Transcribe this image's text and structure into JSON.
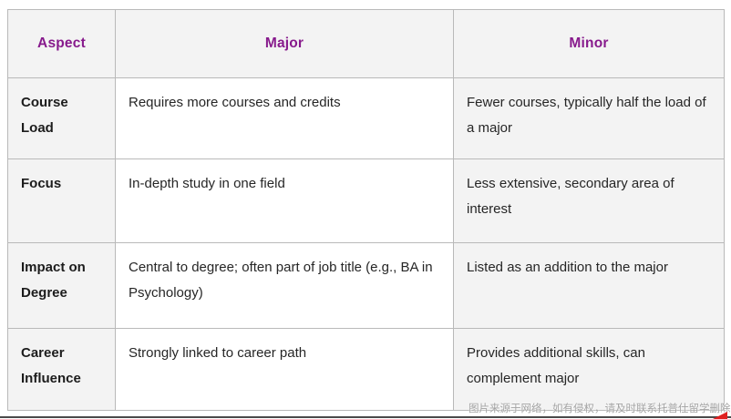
{
  "colors": {
    "header_text": "#871a8c",
    "cell_shade": "#f3f3f3",
    "border": "#b9b9b9",
    "body_text": "#262626",
    "label_text": "#1c1c1c",
    "watermark_text": "#a3a3a3",
    "bottom_line": "#4a4a4a",
    "corner_mark": "#e02020"
  },
  "table": {
    "columns": [
      {
        "label": "Aspect"
      },
      {
        "label": "Major"
      },
      {
        "label": "Minor"
      }
    ],
    "rows": [
      {
        "aspect": "Course Load",
        "major": "Requires more courses and credits",
        "minor": "Fewer courses, typically half the load of a major"
      },
      {
        "aspect": "Focus",
        "major": "In-depth study in one field",
        "minor": "Less extensive, secondary area of interest"
      },
      {
        "aspect": "Impact on Degree",
        "major": "Central to degree; often part of job title (e.g., BA in Psychology)",
        "minor": "Listed as an addition to the major"
      },
      {
        "aspect": "Career Influence",
        "major": "Strongly linked to career path",
        "minor": "Provides additional skills, can complement major"
      }
    ]
  },
  "watermark": {
    "text": "图片来源于网络，如有侵权，请及时联系托普仕留学删除"
  }
}
